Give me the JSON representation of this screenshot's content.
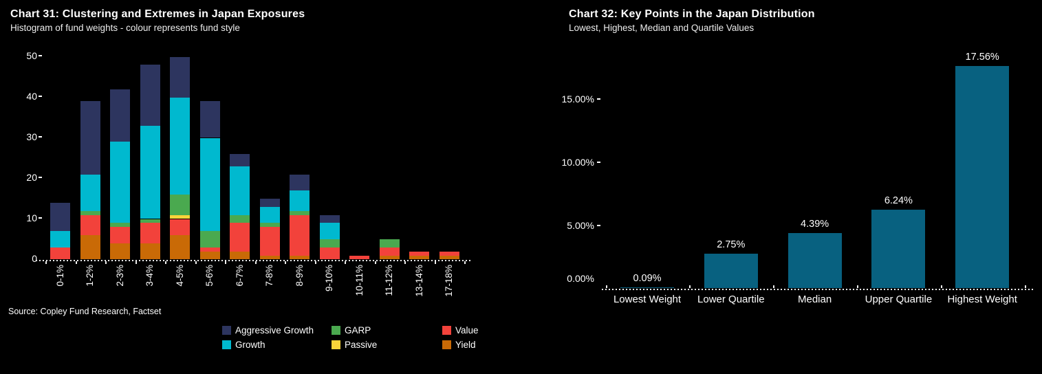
{
  "colors": {
    "background": "#000000",
    "text": "#ffffff"
  },
  "chart_data": [
    {
      "type": "bar",
      "stacked": true,
      "title": "Chart 31:  Clustering and Extremes in Japan Exposures",
      "subtitle": "Histogram of fund weights - colour represents fund style",
      "source": "Source:  Copley Fund Research, Factset",
      "xlabel": "",
      "ylabel": "",
      "ylim": [
        0,
        50
      ],
      "y_ticks": [
        0,
        10,
        20,
        30,
        40,
        50
      ],
      "grid": false,
      "legend_position": "bottom",
      "categories": [
        "0-1%",
        "1-2%",
        "2-3%",
        "3-4%",
        "4-5%",
        "5-6%",
        "6-7%",
        "7-8%",
        "8-9%",
        "9-10%",
        "10-11%",
        "11-12%",
        "13-14%",
        "17-18%"
      ],
      "series": [
        {
          "name": "Yield",
          "color": "#c96a06",
          "values": [
            0,
            6,
            4,
            4,
            6,
            2,
            2,
            1,
            1,
            0,
            0,
            1,
            1,
            1
          ]
        },
        {
          "name": "Value",
          "color": "#f2423b",
          "values": [
            3,
            5,
            4,
            5,
            4,
            1,
            7,
            7,
            10,
            3,
            1,
            2,
            1,
            1
          ]
        },
        {
          "name": "Passive",
          "color": "#f9d43a",
          "values": [
            0,
            0,
            0,
            0,
            1,
            0,
            0,
            0,
            0,
            0,
            0,
            0,
            0,
            0
          ]
        },
        {
          "name": "GARP",
          "color": "#4aa94f",
          "values": [
            0,
            1,
            1,
            1,
            5,
            4,
            2,
            1,
            1,
            2,
            0,
            2,
            0,
            0
          ]
        },
        {
          "name": "Growth",
          "color": "#00b9cf",
          "values": [
            4,
            9,
            20,
            23,
            24,
            23,
            12,
            4,
            5,
            4,
            0,
            0,
            0,
            0
          ]
        },
        {
          "name": "Aggressive Growth",
          "color": "#2d355f",
          "values": [
            7,
            18,
            13,
            15,
            10,
            9,
            3,
            2,
            4,
            2,
            0,
            0,
            0,
            0
          ]
        }
      ],
      "legend_order": [
        "Aggressive Growth",
        "GARP",
        "Value",
        "Growth",
        "Passive",
        "Yield"
      ]
    },
    {
      "type": "bar",
      "title": "Chart 32:  Key Points in the Japan Distribution",
      "subtitle": "Lowest, Highest, Median and Quartile Values",
      "xlabel": "",
      "ylabel": "",
      "ylim": [
        0,
        18.5
      ],
      "y_ticks": [
        0,
        5,
        10,
        15
      ],
      "y_tick_labels": [
        "0.00%",
        "5.00%",
        "10.00%",
        "15.00%"
      ],
      "grid": false,
      "bar_color": "#086180",
      "categories": [
        "Lowest Weight",
        "Lower Quartile",
        "Median",
        "Upper Quartile",
        "Highest Weight"
      ],
      "values": [
        0.09,
        2.75,
        4.39,
        6.24,
        17.56
      ],
      "value_labels": [
        "0.09%",
        "2.75%",
        "4.39%",
        "6.24%",
        "17.56%"
      ]
    }
  ]
}
